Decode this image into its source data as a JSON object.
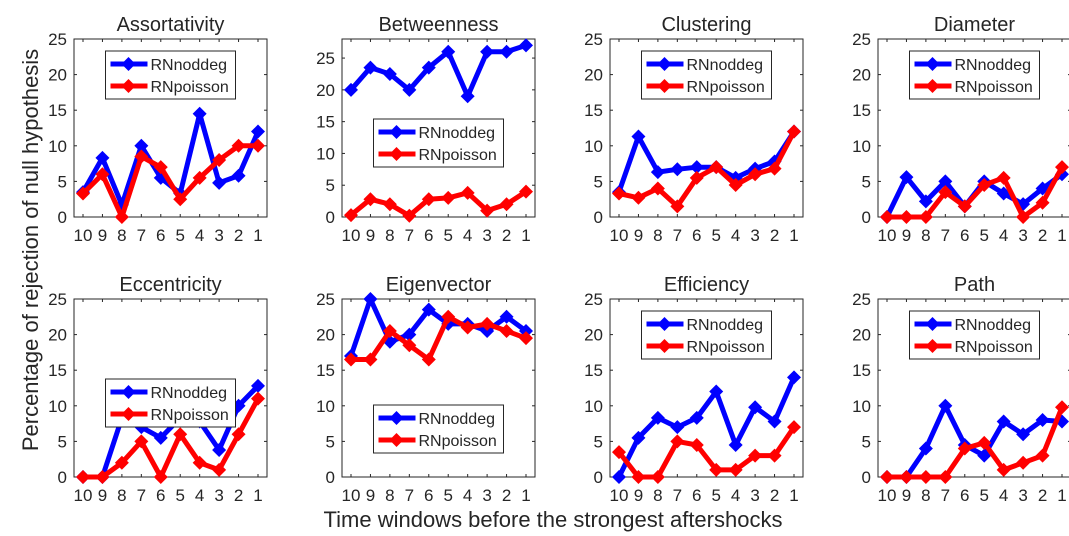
{
  "figure": {
    "ylabel": "Percentage of rejection of null hypothesis",
    "xlabel": "Time windows before the strongest aftershocks",
    "colors": {
      "RNnoddeg": "#0000ff",
      "RNpoisson": "#ff0000"
    }
  },
  "chart_data": [
    {
      "type": "line",
      "title": "Assortativity",
      "categories": [
        "10",
        "9",
        "8",
        "7",
        "6",
        "5",
        "4",
        "3",
        "2",
        "1"
      ],
      "ylim": [
        0,
        25
      ],
      "yticks": [
        0,
        5,
        10,
        15,
        20,
        25
      ],
      "grid": false,
      "legend": "top-center",
      "series": [
        {
          "name": "RNnoddeg",
          "values": [
            3.5,
            8.3,
            1.7,
            10.0,
            5.5,
            3.3,
            14.5,
            4.8,
            5.8,
            12.0
          ]
        },
        {
          "name": "RNpoisson",
          "values": [
            3.3,
            6.0,
            0.0,
            8.5,
            7.0,
            2.5,
            5.5,
            8.0,
            10.0,
            10.0
          ]
        }
      ]
    },
    {
      "type": "line",
      "title": "Betweenness",
      "categories": [
        "10",
        "9",
        "8",
        "7",
        "6",
        "5",
        "4",
        "3",
        "2",
        "1"
      ],
      "ylim": [
        0,
        28
      ],
      "yticks": [
        0,
        5,
        10,
        15,
        20,
        25
      ],
      "grid": false,
      "legend": "center",
      "series": [
        {
          "name": "RNnoddeg",
          "values": [
            20.0,
            23.5,
            22.5,
            20.0,
            23.5,
            26.0,
            19.0,
            26.0,
            26.0,
            27.0
          ]
        },
        {
          "name": "RNpoisson",
          "values": [
            0.3,
            2.8,
            2.0,
            0.2,
            2.8,
            3.0,
            3.8,
            1.0,
            2.0,
            4.0
          ]
        }
      ]
    },
    {
      "type": "line",
      "title": "Clustering",
      "categories": [
        "10",
        "9",
        "8",
        "7",
        "6",
        "5",
        "4",
        "3",
        "2",
        "1"
      ],
      "ylim": [
        0,
        25
      ],
      "yticks": [
        0,
        5,
        10,
        15,
        20,
        25
      ],
      "grid": false,
      "legend": "top-center",
      "series": [
        {
          "name": "RNnoddeg",
          "values": [
            3.5,
            11.3,
            6.3,
            6.7,
            7.0,
            7.0,
            5.5,
            6.8,
            7.8,
            12.0
          ]
        },
        {
          "name": "RNpoisson",
          "values": [
            3.3,
            2.7,
            4.0,
            1.5,
            5.5,
            7.0,
            4.5,
            6.0,
            6.8,
            12.0
          ]
        }
      ]
    },
    {
      "type": "line",
      "title": "Diameter",
      "categories": [
        "10",
        "9",
        "8",
        "7",
        "6",
        "5",
        "4",
        "3",
        "2",
        "1"
      ],
      "ylim": [
        0,
        25
      ],
      "yticks": [
        0,
        5,
        10,
        15,
        20,
        25
      ],
      "grid": false,
      "legend": "top-center",
      "series": [
        {
          "name": "RNnoddeg",
          "values": [
            0.0,
            5.6,
            2.2,
            5.0,
            1.5,
            5.0,
            3.3,
            1.8,
            4.0,
            6.0
          ]
        },
        {
          "name": "RNpoisson",
          "values": [
            0.0,
            0.0,
            0.0,
            3.5,
            1.5,
            4.5,
            5.5,
            0.0,
            2.0,
            7.0
          ]
        }
      ]
    },
    {
      "type": "line",
      "title": "Eccentricity",
      "categories": [
        "10",
        "9",
        "8",
        "7",
        "6",
        "5",
        "4",
        "3",
        "2",
        "1"
      ],
      "ylim": [
        0,
        25
      ],
      "yticks": [
        0,
        5,
        10,
        15,
        20,
        25
      ],
      "grid": false,
      "legend": "center",
      "series": [
        {
          "name": "RNnoddeg",
          "values": [
            0.0,
            0.0,
            8.3,
            7.0,
            5.5,
            8.3,
            7.8,
            3.8,
            10.0,
            12.8
          ]
        },
        {
          "name": "RNpoisson",
          "values": [
            0.0,
            0.0,
            2.0,
            5.0,
            0.0,
            6.0,
            2.0,
            1.0,
            6.0,
            11.0
          ]
        }
      ]
    },
    {
      "type": "line",
      "title": "Eigenvector",
      "categories": [
        "10",
        "9",
        "8",
        "7",
        "6",
        "5",
        "4",
        "3",
        "2",
        "1"
      ],
      "ylim": [
        0,
        25
      ],
      "yticks": [
        0,
        5,
        10,
        15,
        20,
        25
      ],
      "grid": false,
      "legend": "bottom-center",
      "series": [
        {
          "name": "RNnoddeg",
          "values": [
            17.0,
            25.0,
            19.0,
            20.0,
            23.5,
            21.5,
            21.5,
            20.5,
            22.5,
            20.5
          ]
        },
        {
          "name": "RNpoisson",
          "values": [
            16.5,
            16.5,
            20.5,
            18.5,
            16.5,
            22.5,
            21.0,
            21.5,
            20.5,
            19.5
          ]
        }
      ]
    },
    {
      "type": "line",
      "title": "Efficiency",
      "categories": [
        "10",
        "9",
        "8",
        "7",
        "6",
        "5",
        "4",
        "3",
        "2",
        "1"
      ],
      "ylim": [
        0,
        25
      ],
      "yticks": [
        0,
        5,
        10,
        15,
        20,
        25
      ],
      "grid": false,
      "legend": "top-center",
      "series": [
        {
          "name": "RNnoddeg",
          "values": [
            0.0,
            5.5,
            8.3,
            7.0,
            8.3,
            12.0,
            4.5,
            9.8,
            7.8,
            14.0
          ]
        },
        {
          "name": "RNpoisson",
          "values": [
            3.5,
            0.0,
            0.0,
            5.0,
            4.5,
            1.0,
            1.0,
            3.0,
            3.0,
            7.0
          ]
        }
      ]
    },
    {
      "type": "line",
      "title": "Path",
      "categories": [
        "10",
        "9",
        "8",
        "7",
        "6",
        "5",
        "4",
        "3",
        "2",
        "1"
      ],
      "ylim": [
        0,
        25
      ],
      "yticks": [
        0,
        5,
        10,
        15,
        20,
        25
      ],
      "grid": false,
      "legend": "top-center",
      "series": [
        {
          "name": "RNnoddeg",
          "values": [
            0.0,
            0.0,
            4.0,
            10.0,
            4.5,
            3.0,
            7.8,
            6.0,
            8.0,
            7.8
          ]
        },
        {
          "name": "RNpoisson",
          "values": [
            0.0,
            0.0,
            0.0,
            0.0,
            4.0,
            4.8,
            1.0,
            2.0,
            3.0,
            9.8
          ]
        }
      ]
    }
  ]
}
